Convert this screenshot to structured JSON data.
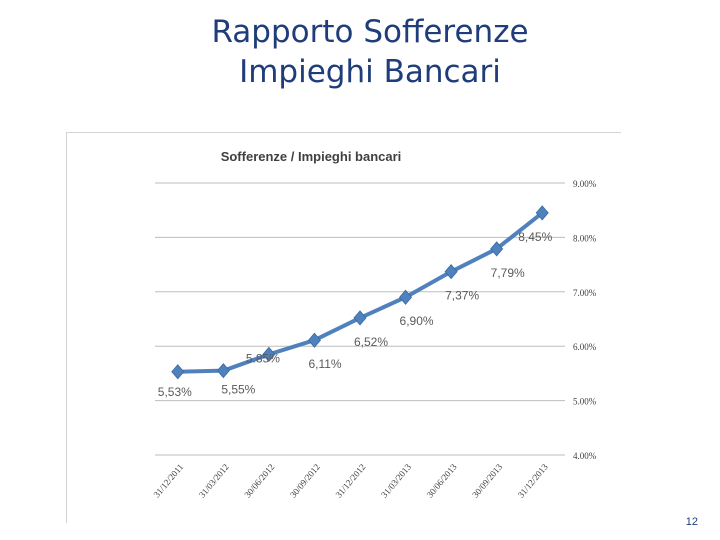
{
  "slide": {
    "title_line1": "Rapporto Sofferenze",
    "title_line2": "Impieghi Bancari",
    "page_number": "12"
  },
  "chart_data": {
    "type": "line",
    "title": "Sofferenze / Impieghi bancari",
    "xlabel": "",
    "ylabel": "",
    "y_axis_position": "right",
    "grid": true,
    "legend": "none",
    "ylim": [
      4.0,
      9.0
    ],
    "y_ticks": [
      4.0,
      5.0,
      6.0,
      7.0,
      8.0,
      9.0
    ],
    "y_tick_labels": [
      "4.00%",
      "5.00%",
      "6.00%",
      "7.00%",
      "8.00%",
      "9.00%"
    ],
    "categories": [
      "31/12/2011",
      "31/03/2012",
      "30/06/2012",
      "30/09/2012",
      "31/12/2012",
      "31/03/2013",
      "30/06/2013",
      "30/09/2013",
      "31/12/2013"
    ],
    "series": [
      {
        "values": [
          5.53,
          5.55,
          5.85,
          6.11,
          6.52,
          6.9,
          7.37,
          7.79,
          8.45
        ],
        "data_labels": [
          "5,53%",
          "5,55%",
          "5.85%",
          "6,11%",
          "6,52%",
          "6,90%",
          "7,37%",
          "7,79%",
          "8,45%"
        ],
        "color": "#4f81bd"
      }
    ],
    "colors": {
      "line": "#4f81bd",
      "grid": "#bdbdbd",
      "text": "#404040",
      "label": "#5a5a5a"
    }
  }
}
